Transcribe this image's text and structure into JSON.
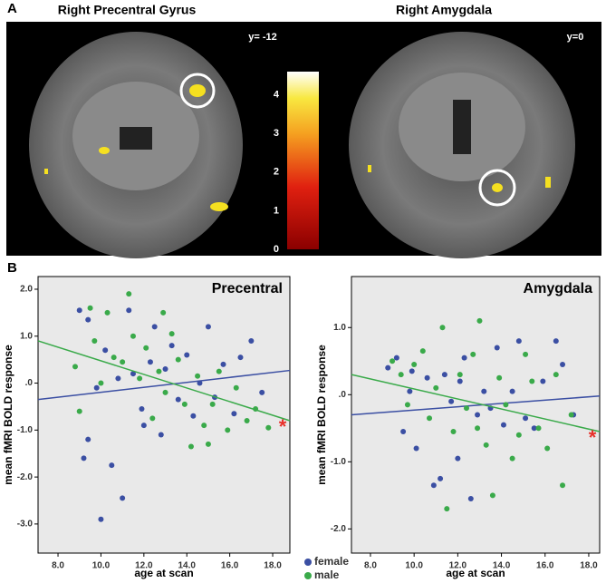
{
  "panel_a": {
    "label": "A",
    "titles": [
      "Right Precentral Gyrus",
      "Right Amygdala"
    ],
    "slices": [
      "y= -12",
      "y=0"
    ],
    "colorbar": {
      "lim": [
        0,
        4.6
      ],
      "ticks": [
        0,
        1,
        2,
        3,
        4
      ]
    }
  },
  "panel_b": {
    "label": "B"
  },
  "chart_data": [
    {
      "type": "scatter",
      "title": "Precentral",
      "x_label": "age at scan",
      "y_label": "mean fMRI BOLD response",
      "annotation": "*",
      "annotation_color": "#e8302a",
      "xlim": [
        7.07,
        18.8
      ],
      "ylim": [
        -3.62,
        2.27
      ],
      "xticks": [
        {
          "value": 8,
          "label": "8.0"
        },
        {
          "value": 10,
          "label": "10.0"
        },
        {
          "value": 12,
          "label": "12.0"
        },
        {
          "value": 14,
          "label": "14.0"
        },
        {
          "value": 16,
          "label": "16.0"
        },
        {
          "value": 18,
          "label": "18.0"
        }
      ],
      "yticks": [
        {
          "value": 2,
          "label": "2.0"
        },
        {
          "value": 1,
          "label": "1.0"
        },
        {
          "value": 0,
          "label": ".0"
        },
        {
          "value": -1,
          "label": "-1.0"
        },
        {
          "value": -2,
          "label": "-2.0"
        },
        {
          "value": -3,
          "label": "-3.0"
        }
      ],
      "series": [
        {
          "name": "female",
          "color": "#3b4fa3",
          "fit": [
            -0.35,
            0.27
          ],
          "x": [
            9.0,
            9.4,
            9.2,
            9.4,
            10.0,
            10.5,
            10.2,
            11.0,
            10.8,
            11.3,
            11.5,
            11.9,
            12.3,
            12.5,
            12.8,
            13.0,
            13.3,
            13.6,
            14.0,
            14.3,
            14.6,
            15.0,
            15.3,
            15.7,
            16.2,
            16.5,
            17.0,
            17.5,
            9.8,
            12.0
          ],
          "values": [
            1.55,
            1.35,
            -1.6,
            -1.2,
            -2.9,
            -1.75,
            0.7,
            -2.45,
            0.1,
            1.55,
            0.2,
            -0.55,
            0.45,
            1.2,
            -1.1,
            0.3,
            0.8,
            -0.35,
            0.6,
            -0.7,
            0.0,
            1.2,
            -0.3,
            0.4,
            -0.65,
            0.55,
            0.9,
            -0.2,
            -0.1,
            -0.9
          ]
        },
        {
          "name": "male",
          "color": "#3aaa4a",
          "fit": [
            0.9,
            -0.8
          ],
          "x": [
            8.8,
            9.0,
            9.5,
            9.7,
            10.3,
            10.6,
            11.0,
            11.3,
            11.5,
            11.8,
            12.1,
            12.4,
            12.7,
            13.0,
            13.3,
            13.6,
            13.9,
            14.2,
            14.5,
            14.8,
            15.2,
            15.5,
            15.9,
            16.3,
            16.8,
            17.2,
            17.8,
            10.0,
            12.9,
            15.0
          ],
          "values": [
            0.35,
            -0.6,
            1.6,
            0.9,
            1.5,
            0.55,
            0.45,
            1.9,
            1.0,
            0.1,
            0.75,
            -0.75,
            0.25,
            -0.2,
            1.05,
            0.5,
            -0.45,
            -1.35,
            0.15,
            -0.9,
            -0.45,
            0.25,
            -1.0,
            -0.1,
            -0.8,
            -0.55,
            -0.95,
            0.0,
            1.5,
            -1.3
          ]
        }
      ]
    },
    {
      "type": "scatter",
      "title": "Amygdala",
      "x_label": "age at scan",
      "y_label": "mean fMRI BOLD response",
      "annotation": "*",
      "annotation_color": "#e8302a",
      "xlim": [
        7.13,
        18.5
      ],
      "ylim": [
        -2.36,
        1.76
      ],
      "xticks": [
        {
          "value": 8,
          "label": "8.0"
        },
        {
          "value": 10,
          "label": "10.0"
        },
        {
          "value": 12,
          "label": "12.0"
        },
        {
          "value": 14,
          "label": "14.0"
        },
        {
          "value": 16,
          "label": "16.0"
        },
        {
          "value": 18,
          "label": "18.0"
        }
      ],
      "yticks": [
        {
          "value": 1,
          "label": "1.0"
        },
        {
          "value": 0,
          "label": ".0"
        },
        {
          "value": -1,
          "label": "-1.0"
        },
        {
          "value": -2,
          "label": "-2.0"
        }
      ],
      "series": [
        {
          "color": "#3b4fa3",
          "fit": [
            -0.3,
            -0.02
          ],
          "x": [
            8.8,
            9.2,
            9.5,
            9.8,
            10.1,
            10.6,
            10.9,
            11.2,
            11.4,
            11.7,
            12.0,
            12.3,
            12.6,
            12.9,
            13.2,
            13.5,
            13.8,
            14.1,
            14.5,
            14.8,
            15.1,
            15.5,
            15.9,
            16.5,
            16.8,
            17.3,
            9.9,
            12.1
          ],
          "values": [
            0.4,
            0.55,
            -0.55,
            0.05,
            -0.8,
            0.25,
            -1.35,
            -1.25,
            0.3,
            -0.1,
            -0.95,
            0.55,
            -1.55,
            -0.3,
            0.05,
            -0.2,
            0.7,
            -0.45,
            0.05,
            0.8,
            -0.35,
            -0.5,
            0.2,
            0.8,
            0.45,
            -0.3,
            0.35,
            0.2
          ]
        },
        {
          "color": "#3aaa4a",
          "fit": [
            0.3,
            -0.55
          ],
          "x": [
            9.0,
            9.4,
            9.7,
            10.0,
            10.4,
            10.7,
            11.0,
            11.3,
            11.5,
            11.8,
            12.1,
            12.4,
            12.7,
            13.0,
            13.3,
            13.6,
            13.9,
            14.2,
            14.5,
            14.8,
            15.1,
            15.4,
            15.7,
            16.1,
            16.5,
            16.8,
            17.2,
            12.9
          ],
          "values": [
            0.5,
            0.3,
            -0.15,
            0.45,
            0.65,
            -0.35,
            0.1,
            1.0,
            -1.7,
            -0.55,
            0.3,
            -0.2,
            0.6,
            1.1,
            -0.75,
            -1.5,
            0.25,
            -0.15,
            -0.95,
            -0.6,
            0.6,
            0.2,
            -0.5,
            -0.8,
            0.3,
            -1.35,
            -0.3,
            -0.5
          ]
        }
      ]
    }
  ]
}
